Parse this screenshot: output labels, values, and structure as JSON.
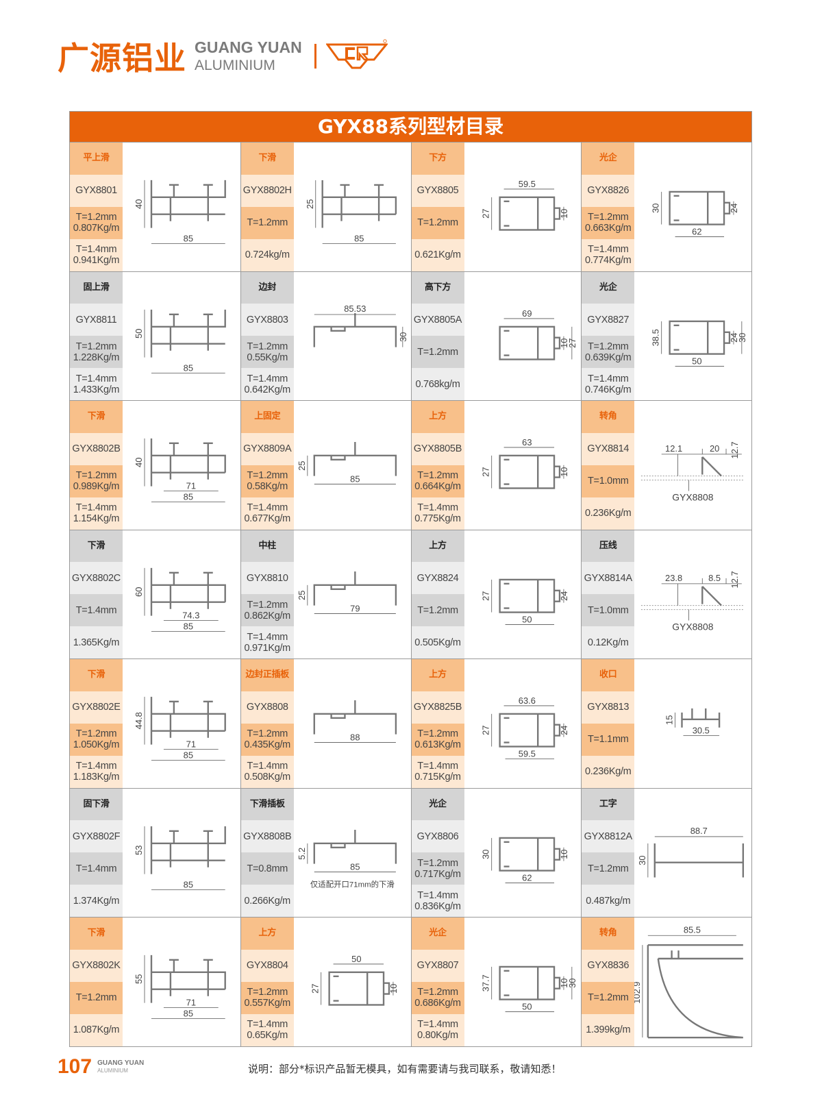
{
  "header": {
    "brand_cn": "广源铝业",
    "brand_en_1": "GUANG YUAN",
    "brand_en_2": "ALUMINIUM",
    "logo_mark": "CR",
    "accent": "#e8620a"
  },
  "catalog": {
    "title": "GYX88系列型材目录"
  },
  "rows": [
    {
      "tone": "o",
      "items": [
        {
          "name": "平上滑",
          "code": "GYX8801",
          "spec1": "T=1.2mm\n0.807Kg/m",
          "spec2": "T=1.4mm\n0.941Kg/m",
          "shape": "slide",
          "dims": {
            "left": "40",
            "bottom": [
              "85"
            ]
          }
        },
        {
          "name": "下滑",
          "code": "GYX8802H",
          "spec1": "T=1.2mm",
          "spec2": "0.724kg/m",
          "shape": "slide2",
          "dims": {
            "left": "25",
            "bottom": [
              "85"
            ]
          }
        },
        {
          "name": "下方",
          "code": "GYX8805",
          "spec1": "T=1.2mm",
          "spec2": "0.621Kg/m",
          "shape": "box",
          "dims": {
            "top": "59.5",
            "left": "27",
            "right": [
              "10"
            ]
          }
        },
        {
          "name": "光企",
          "code": "GYX8826",
          "spec1": "T=1.2mm\n0.663Kg/m",
          "spec2": "T=1.4mm\n0.774Kg/m",
          "shape": "box",
          "dims": {
            "left": "30",
            "right": [
              "24"
            ],
            "bottom": [
              "62"
            ]
          }
        }
      ]
    },
    {
      "tone": "g",
      "items": [
        {
          "name": "固上滑",
          "code": "GYX8811",
          "spec1": "T=1.2mm\n1.228Kg/m",
          "spec2": "T=1.4mm\n1.433Kg/m",
          "shape": "slide",
          "dims": {
            "left": "50",
            "bottom": [
              "85"
            ]
          }
        },
        {
          "name": "边封",
          "code": "GYX8803",
          "spec1": "T=1.2mm\n0.55Kg/m",
          "spec2": "T=1.4mm\n0.642Kg/m",
          "shape": "flat",
          "dims": {
            "top": "85.53",
            "right": [
              "30"
            ]
          }
        },
        {
          "name": "高下方",
          "code": "GYX8805A",
          "spec1": "T=1.2mm",
          "spec2": "0.768kg/m",
          "shape": "box",
          "dims": {
            "top": "69",
            "right": [
              "10",
              "27"
            ]
          }
        },
        {
          "name": "光企",
          "code": "GYX8827",
          "spec1": "T=1.2mm\n0.639Kg/m",
          "spec2": "T=1.4mm\n0.746Kg/m",
          "shape": "box",
          "dims": {
            "left": "38.5",
            "right": [
              "24",
              "30"
            ],
            "bottom": [
              "50"
            ]
          }
        }
      ]
    },
    {
      "tone": "o",
      "items": [
        {
          "name": "下滑",
          "code": "GYX8802B",
          "spec1": "T=1.2mm\n0.989Kg/m",
          "spec2": "T=1.4mm\n1.154Kg/m",
          "shape": "slide2",
          "dims": {
            "left": "40",
            "bottom": [
              "71",
              "85"
            ]
          }
        },
        {
          "name": "上固定",
          "code": "GYX8809A",
          "spec1": "T=1.2mm\n0.58Kg/m",
          "spec2": "T=1.4mm\n0.677Kg/m",
          "shape": "flat",
          "dims": {
            "left": "25",
            "bottom": [
              "85"
            ]
          }
        },
        {
          "name": "上方",
          "code": "GYX8805B",
          "spec1": "T=1.2mm\n0.664Kg/m",
          "spec2": "T=1.4mm\n0.775Kg/m",
          "shape": "box",
          "dims": {
            "top": "63",
            "left": "27",
            "right": [
              "10"
            ]
          }
        },
        {
          "name": "转角",
          "code": "GYX8814",
          "spec1": "T=1.0mm",
          "spec2": "0.236Kg/m",
          "shape": "corner",
          "dims": {
            "top": "12.1",
            "top2": "20",
            "right": [
              "12.7"
            ],
            "callout": "GYX8808"
          }
        }
      ]
    },
    {
      "tone": "g",
      "items": [
        {
          "name": "下滑",
          "code": "GYX8802C",
          "spec1": "T=1.4mm",
          "spec2": "1.365Kg/m",
          "shape": "slide2",
          "dims": {
            "left": "60",
            "bottom": [
              "74.3",
              "85"
            ]
          }
        },
        {
          "name": "中柱",
          "code": "GYX8810",
          "spec1": "T=1.2mm\n0.862Kg/m",
          "spec2": "T=1.4mm\n0.971Kg/m",
          "shape": "flat",
          "dims": {
            "left": "25",
            "bottom": [
              "79"
            ]
          }
        },
        {
          "name": "上方",
          "code": "GYX8824",
          "spec1": "T=1.2mm",
          "spec2": "0.505Kg/m",
          "shape": "box",
          "dims": {
            "left": "27",
            "right": [
              "24"
            ],
            "bottom": [
              "50"
            ]
          }
        },
        {
          "name": "压线",
          "code": "GYX8814A",
          "spec1": "T=1.0mm",
          "spec2": "0.12Kg/m",
          "shape": "corner",
          "dims": {
            "top": "23.8",
            "top2": "8.5",
            "right": [
              "12.7"
            ],
            "callout": "GYX8808"
          }
        }
      ]
    },
    {
      "tone": "o",
      "items": [
        {
          "name": "下滑",
          "code": "GYX8802E",
          "spec1": "T=1.2mm\n1.050Kg/m",
          "spec2": "T=1.4mm\n1.183Kg/m",
          "shape": "slide2",
          "dims": {
            "left": "44.8",
            "bottom": [
              "71",
              "85"
            ]
          }
        },
        {
          "name": "边封正插板",
          "code": "GYX8808",
          "spec1": "T=1.2mm\n0.435Kg/m",
          "spec2": "T=1.4mm\n0.508Kg/m",
          "shape": "flat",
          "dims": {
            "bottom": [
              "88"
            ]
          }
        },
        {
          "name": "上方",
          "code": "GYX8825B",
          "spec1": "T=1.2mm\n0.613Kg/m",
          "spec2": "T=1.4mm\n0.715Kg/m",
          "shape": "box",
          "dims": {
            "top": "63.6",
            "left": "27",
            "right": [
              "24"
            ],
            "bottom": [
              "59.5"
            ]
          }
        },
        {
          "name": "收口",
          "code": "GYX8813",
          "spec1": "T=1.1mm",
          "spec2": "0.236Kg/m",
          "shape": "small",
          "dims": {
            "left": "15",
            "bottom": [
              "30.5"
            ]
          }
        }
      ]
    },
    {
      "tone": "g",
      "items": [
        {
          "name": "固下滑",
          "code": "GYX8802F",
          "spec1": "T=1.4mm",
          "spec2": "1.374Kg/m",
          "shape": "slide",
          "dims": {
            "left": "53",
            "bottom": [
              "85"
            ]
          }
        },
        {
          "name": "下滑插板",
          "code": "GYX8808B",
          "spec1": "T=0.8mm",
          "spec2": "0.266Kg/m",
          "shape": "flat",
          "dims": {
            "left": "5.2",
            "bottom": [
              "85"
            ],
            "note": "仅适配开口71mm的下滑"
          }
        },
        {
          "name": "光企",
          "code": "GYX8806",
          "spec1": "T=1.2mm\n0.717Kg/m",
          "spec2": "T=1.4mm\n0.836Kg/m",
          "shape": "box",
          "dims": {
            "left": "30",
            "right": [
              "10"
            ],
            "bottom": [
              "62"
            ]
          }
        },
        {
          "name": "工字",
          "code": "GYX8812A",
          "spec1": "T=1.2mm",
          "spec2": "0.487kg/m",
          "shape": "ibeam",
          "dims": {
            "top": "88.7",
            "left": "30"
          }
        }
      ]
    },
    {
      "tone": "o",
      "items": [
        {
          "name": "下滑",
          "code": "GYX8802K",
          "spec1": "T=1.2mm",
          "spec2": "1.087Kg/m",
          "shape": "slide2",
          "dims": {
            "left": "55",
            "bottom": [
              "71",
              "85"
            ]
          }
        },
        {
          "name": "上方",
          "code": "GYX8804",
          "spec1": "T=1.2mm\n0.557Kg/m",
          "spec2": "T=1.4mm\n0.65Kg/m",
          "shape": "box",
          "dims": {
            "top": "50",
            "left": "27",
            "right": [
              "10"
            ]
          }
        },
        {
          "name": "光企",
          "code": "GYX8807",
          "spec1": "T=1.2mm\n0.686Kg/m",
          "spec2": "T=1.4mm\n0.80Kg/m",
          "shape": "box",
          "dims": {
            "left": "37.7",
            "right": [
              "10",
              "30"
            ],
            "bottom": [
              "50"
            ]
          }
        },
        {
          "name": "转角",
          "code": "GYX8836",
          "spec1": "T=1.2mm",
          "spec2": "1.399kg/m",
          "shape": "curve",
          "dims": {
            "top": "85.5",
            "left": "102.9"
          }
        }
      ]
    }
  ],
  "footer": {
    "page_number": "107",
    "brand_1": "GUANG YUAN",
    "brand_2": "ALUMINIUM",
    "note": "说明：部分*标识产品暂无模具，如有需要请与我司联系，敬请知悉！"
  }
}
